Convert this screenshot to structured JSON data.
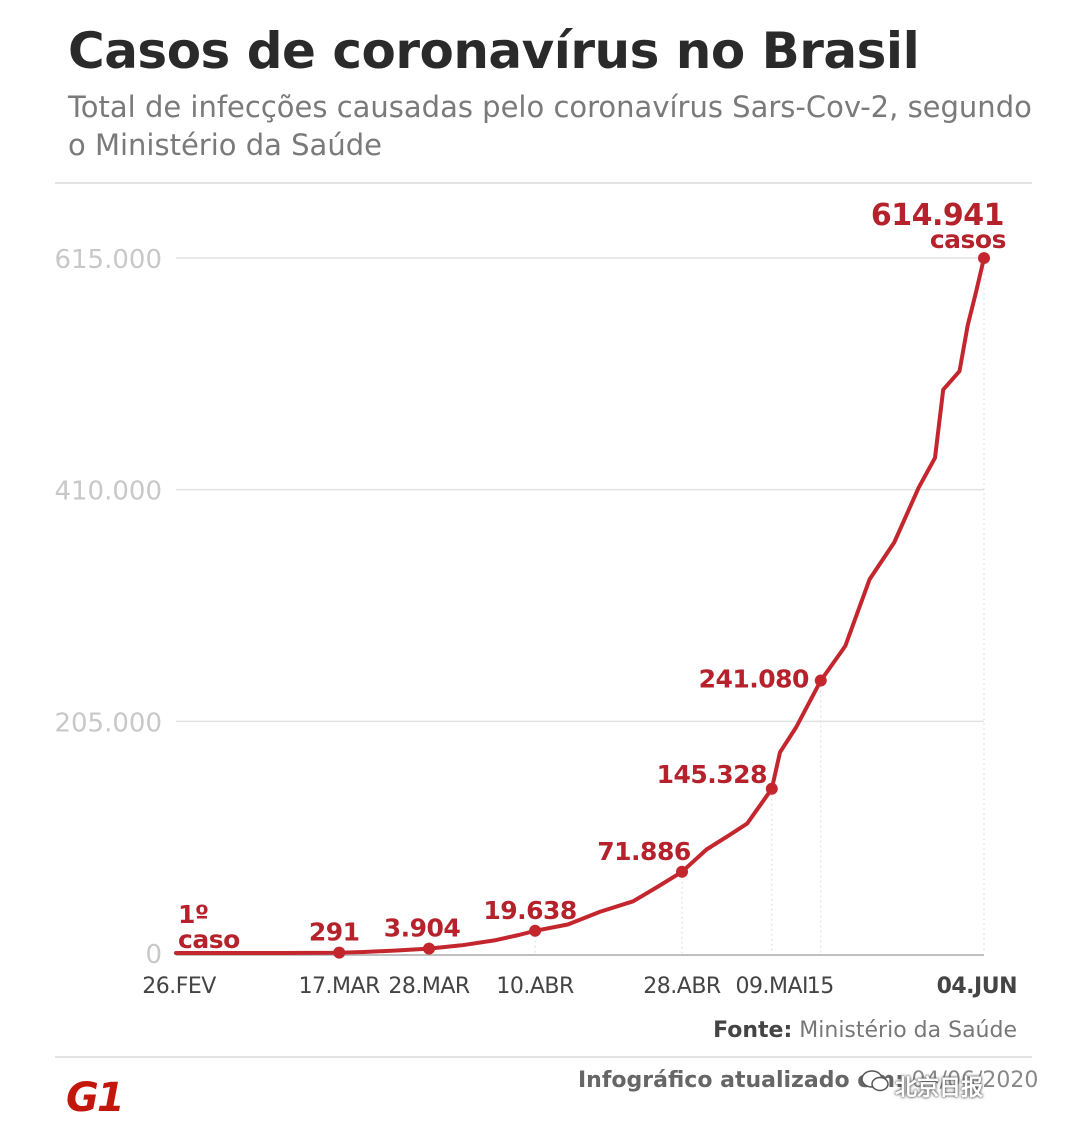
{
  "header": {
    "title": "Casos de coronavírus no Brasil",
    "subtitle": "Total de infecções causadas pelo coronavírus Sars-Cov-2, segundo o Ministério da Saúde"
  },
  "footer": {
    "source_label": "Fonte:",
    "source_value": "Ministério da Saúde",
    "updated_label": "Infográfico atualizado em:",
    "updated_value": "04/06/2020",
    "logo": "G1",
    "watermark": "北京日报"
  },
  "colors": {
    "line": "#c4262e",
    "label": "#b5222b",
    "grid": "#e2e2e2",
    "ytick": "#c8c8c8",
    "xtick": "#444444"
  },
  "chart_data": {
    "type": "line",
    "title": "Casos de coronavírus no Brasil",
    "subtitle": "Total de infecções causadas pelo coronavírus Sars-Cov-2, segundo o Ministério da Saúde",
    "xlabel": "",
    "ylabel": "",
    "ylim": [
      0,
      615000
    ],
    "y_ticks": [
      0,
      205000,
      410000,
      615000
    ],
    "y_tick_labels": [
      "0",
      "205.000",
      "410.000",
      "615.000"
    ],
    "grid": true,
    "x_range": [
      "2020-02-26",
      "2020-06-04"
    ],
    "x_ticks": [
      {
        "date": "2020-02-26",
        "label": "26.FEV"
      },
      {
        "date": "2020-03-17",
        "label": "17.MAR"
      },
      {
        "date": "2020-03-28",
        "label": "28.MAR"
      },
      {
        "date": "2020-04-10",
        "label": "10.ABR"
      },
      {
        "date": "2020-04-28",
        "label": "28.ABR"
      },
      {
        "date": "2020-05-09",
        "label": "09.MAI"
      },
      {
        "date": "2020-05-15",
        "label": "15"
      },
      {
        "date": "2020-06-04",
        "label": "04.JUN"
      }
    ],
    "series": [
      {
        "points": [
          {
            "x": "2020-02-26",
            "y": 1
          },
          {
            "x": "2020-03-05",
            "y": 8
          },
          {
            "x": "2020-03-10",
            "y": 34
          },
          {
            "x": "2020-03-17",
            "y": 291
          },
          {
            "x": "2020-03-20",
            "y": 904
          },
          {
            "x": "2020-03-24",
            "y": 2201
          },
          {
            "x": "2020-03-28",
            "y": 3904
          },
          {
            "x": "2020-04-01",
            "y": 6836
          },
          {
            "x": "2020-04-05",
            "y": 11130
          },
          {
            "x": "2020-04-08",
            "y": 15927
          },
          {
            "x": "2020-04-10",
            "y": 19638
          },
          {
            "x": "2020-04-14",
            "y": 25262
          },
          {
            "x": "2020-04-18",
            "y": 36599
          },
          {
            "x": "2020-04-22",
            "y": 45757
          },
          {
            "x": "2020-04-25",
            "y": 58509
          },
          {
            "x": "2020-04-28",
            "y": 71886
          },
          {
            "x": "2020-05-01",
            "y": 91589
          },
          {
            "x": "2020-05-04",
            "y": 105222
          },
          {
            "x": "2020-05-06",
            "y": 114715
          },
          {
            "x": "2020-05-09",
            "y": 145328
          },
          {
            "x": "2020-05-10",
            "y": 177589
          },
          {
            "x": "2020-05-12",
            "y": 200000
          },
          {
            "x": "2020-05-15",
            "y": 241080
          },
          {
            "x": "2020-05-18",
            "y": 271628
          },
          {
            "x": "2020-05-21",
            "y": 330890
          },
          {
            "x": "2020-05-24",
            "y": 363211
          },
          {
            "x": "2020-05-27",
            "y": 411821
          },
          {
            "x": "2020-05-29",
            "y": 438238
          },
          {
            "x": "2020-05-30",
            "y": 498440
          },
          {
            "x": "2020-06-01",
            "y": 514849
          },
          {
            "x": "2020-06-02",
            "y": 555383
          },
          {
            "x": "2020-06-03",
            "y": 584016
          },
          {
            "x": "2020-06-04",
            "y": 614941
          }
        ]
      }
    ],
    "markers": [
      {
        "x": "2020-03-17",
        "y": 291
      },
      {
        "x": "2020-03-28",
        "y": 3904
      },
      {
        "x": "2020-04-10",
        "y": 19638
      },
      {
        "x": "2020-04-28",
        "y": 71886
      },
      {
        "x": "2020-05-09",
        "y": 145328
      },
      {
        "x": "2020-05-15",
        "y": 241080
      },
      {
        "x": "2020-06-04",
        "y": 614941
      }
    ],
    "annotations": [
      {
        "text": "1º",
        "x": "2020-02-26",
        "y": 1
      },
      {
        "text": "caso",
        "x": "2020-02-26",
        "y": 1
      },
      {
        "text": "291",
        "x": "2020-03-17",
        "y": 291
      },
      {
        "text": "3.904",
        "x": "2020-03-28",
        "y": 3904
      },
      {
        "text": "19.638",
        "x": "2020-04-10",
        "y": 19638
      },
      {
        "text": "71.886",
        "x": "2020-04-28",
        "y": 71886
      },
      {
        "text": "145.328",
        "x": "2020-05-09",
        "y": 145328
      },
      {
        "text": "241.080",
        "x": "2020-05-15",
        "y": 241080
      },
      {
        "text": "614.941",
        "x": "2020-06-04",
        "y": 614941
      },
      {
        "text": "casos",
        "x": "2020-06-04",
        "y": 614941
      }
    ]
  }
}
